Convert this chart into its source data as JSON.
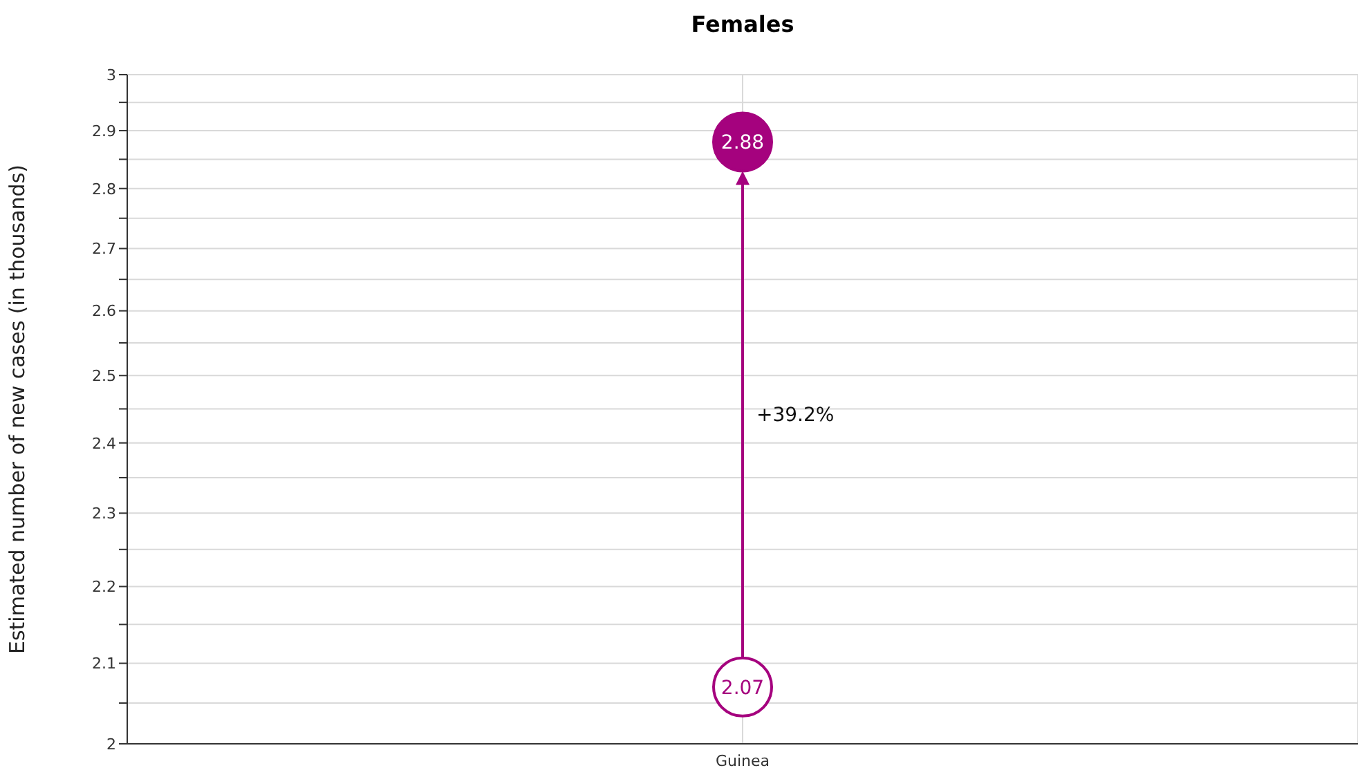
{
  "chart_data": {
    "type": "scatter",
    "title": "Females",
    "ylabel": "Estimated number of new cases (in thousands)",
    "categories": [
      "Guinea"
    ],
    "series": [
      {
        "color": "#a5027e",
        "values": [
          2.07
        ]
      },
      {
        "color": "#a5027e",
        "values": [
          2.88
        ]
      }
    ],
    "log": "y",
    "ylim": [
      2,
      3
    ],
    "yticks": [
      2,
      {
        "value": 2.05,
        "label": null
      },
      2.1,
      {
        "value": 2.15,
        "label": null
      },
      2.2,
      {
        "value": 2.25,
        "label": null
      },
      2.3,
      {
        "value": 2.35,
        "label": null
      },
      2.4,
      {
        "value": 2.45,
        "label": null
      },
      2.5,
      {
        "value": 2.55,
        "label": null
      },
      2.6,
      {
        "value": 2.65,
        "label": null
      },
      2.7,
      {
        "value": 2.75,
        "label": null
      },
      2.8,
      {
        "value": 2.85,
        "label": null
      },
      2.9,
      {
        "value": 2.95,
        "label": null
      },
      3
    ],
    "grid": true,
    "data_labels": true,
    "marker": "circle",
    "annotations": [
      "+39.2%"
    ]
  }
}
